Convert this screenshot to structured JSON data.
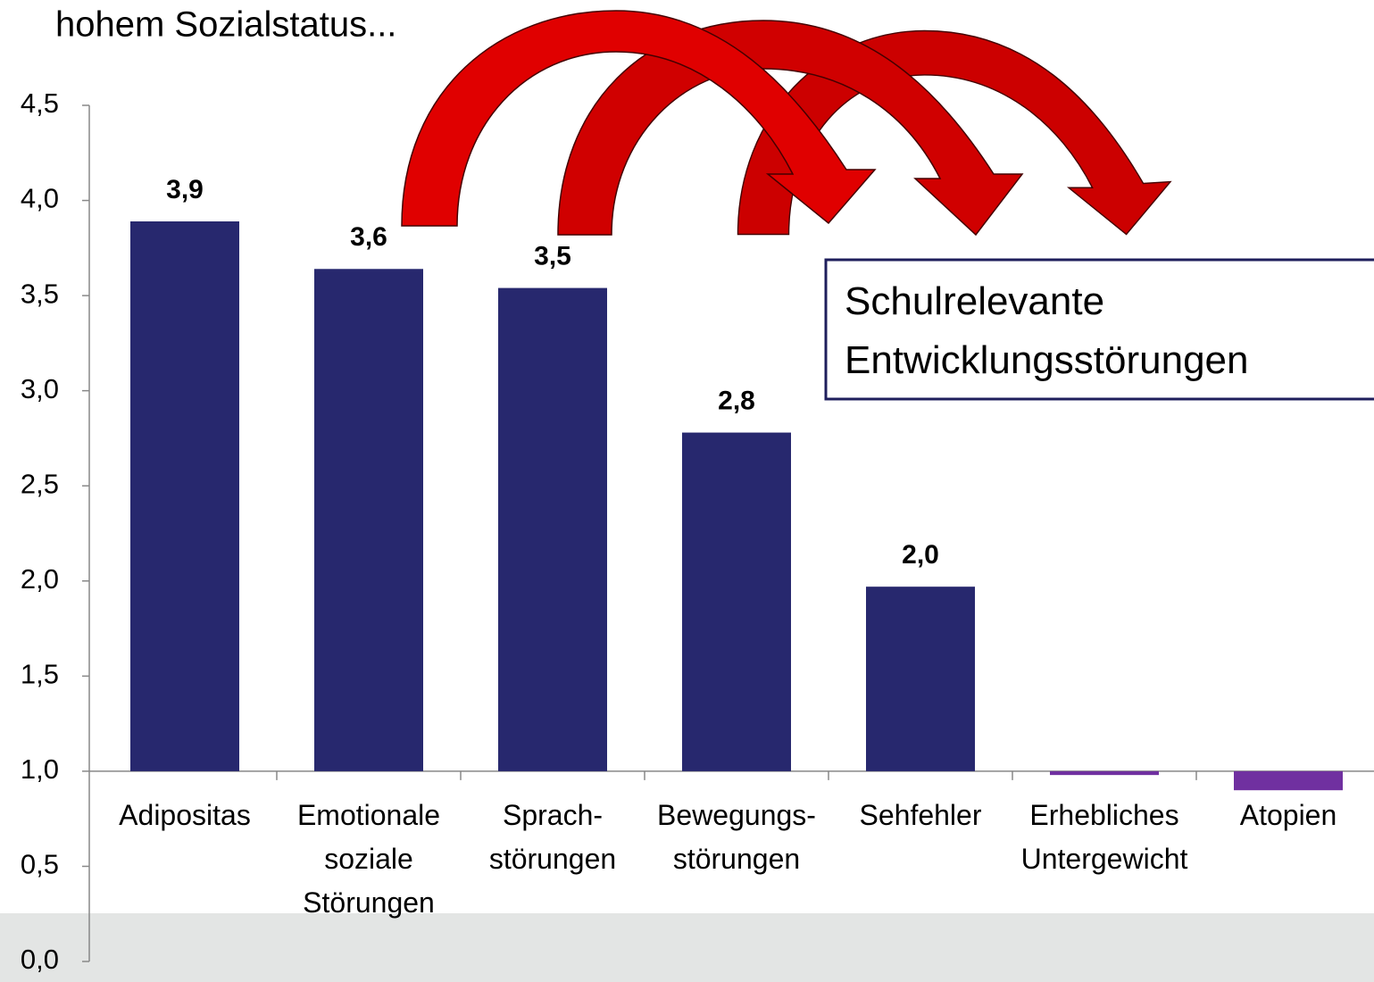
{
  "chart_data": {
    "type": "bar",
    "title": "hohem Sozialstatus...",
    "annotation": "Schulrelevante Entwicklungsstörungen",
    "categories": [
      [
        "Adipositas"
      ],
      [
        "Emotionale",
        "soziale",
        "Störungen"
      ],
      [
        "Sprach-",
        "störungen"
      ],
      [
        "Bewegungs-",
        "störungen"
      ],
      [
        "Sehfehler"
      ],
      [
        "Erhebliches",
        "Untergewicht"
      ],
      [
        "Atopien"
      ]
    ],
    "values": [
      3.89,
      3.64,
      3.54,
      2.78,
      1.97,
      0.98,
      0.9
    ],
    "value_labels": [
      "3,9",
      "3,6",
      "3,5",
      "2,8",
      "2,0",
      null,
      null
    ],
    "colors": [
      "#27286e",
      "#27286e",
      "#27286e",
      "#27286e",
      "#27286e",
      "#7030a0",
      "#7030a0"
    ],
    "baseline": 1,
    "ylim": [
      0,
      4.5
    ],
    "yticks": [
      {
        "value": 0,
        "label": "0,0"
      },
      {
        "value": 0.5,
        "label": "0,5"
      },
      {
        "value": 1,
        "label": "1,0"
      },
      {
        "value": 1.5,
        "label": "1,5"
      },
      {
        "value": 2,
        "label": "2,0"
      },
      {
        "value": 2.5,
        "label": "2,5"
      },
      {
        "value": 3,
        "label": "3,0"
      },
      {
        "value": 3.5,
        "label": "3,5"
      },
      {
        "value": 4,
        "label": "4,0"
      },
      {
        "value": 4.5,
        "label": "4,5"
      }
    ],
    "grid": false
  }
}
